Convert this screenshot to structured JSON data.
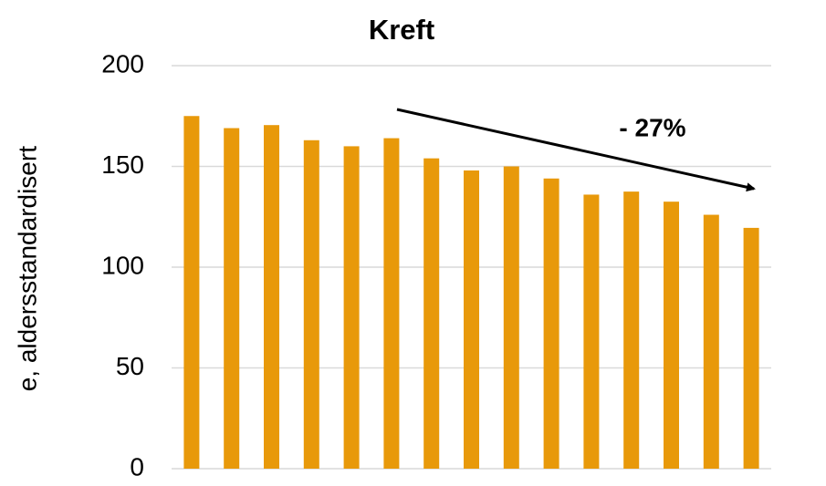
{
  "chart_data": {
    "type": "bar",
    "title": "Kreft",
    "y_label": "e, aldersstandardisert",
    "annotation": "- 27%",
    "categories": [
      null,
      null,
      null,
      null,
      null,
      null,
      null,
      null,
      null,
      null,
      null,
      null,
      null,
      null,
      null
    ],
    "values": [
      175,
      169,
      170.5,
      163,
      160,
      164,
      154,
      148,
      150,
      144,
      136,
      137.5,
      132.5,
      126,
      119.5
    ],
    "color": "#e8990a",
    "ylim": [
      0,
      200
    ],
    "yticks": [
      0,
      50,
      100,
      150,
      200
    ],
    "grid": true
  }
}
